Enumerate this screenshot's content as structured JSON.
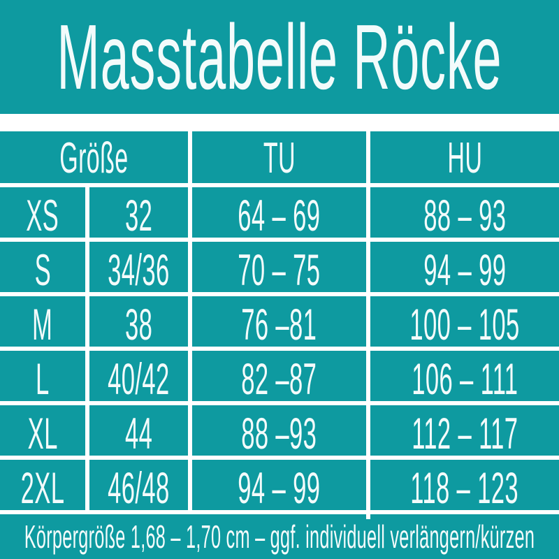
{
  "title": "Masstabelle Röcke",
  "colors": {
    "background": "#0e9aa0",
    "text": "#f3fbfb",
    "divider": "#ffffff"
  },
  "chart_data": {
    "type": "table",
    "title": "Masstabelle Röcke",
    "header": {
      "groesse": "Größe",
      "tu": "TU",
      "hu": "HU"
    },
    "header_layout": "Größe spans the first two columns",
    "rows": [
      {
        "size": "XS",
        "konfektion": "32",
        "tu": "64 – 69",
        "hu": "88 – 93"
      },
      {
        "size": "S",
        "konfektion": "34/36",
        "tu": "70 – 75",
        "hu": "94 – 99"
      },
      {
        "size": "M",
        "konfektion": "38",
        "tu": "76 –81",
        "hu": "100 – 105"
      },
      {
        "size": "L",
        "konfektion": "40/42",
        "tu": "82 –87",
        "hu": "106 – 111"
      },
      {
        "size": "XL",
        "konfektion": "44",
        "tu": "88 –93",
        "hu": "112 – 117"
      },
      {
        "size": "2XL",
        "konfektion": "46/48",
        "tu": "94 – 99",
        "hu": "118 – 123"
      }
    ],
    "footnote": "Körpergröße 1,68 – 1,70 cm – ggf. individuell verlängern/kürzen"
  }
}
